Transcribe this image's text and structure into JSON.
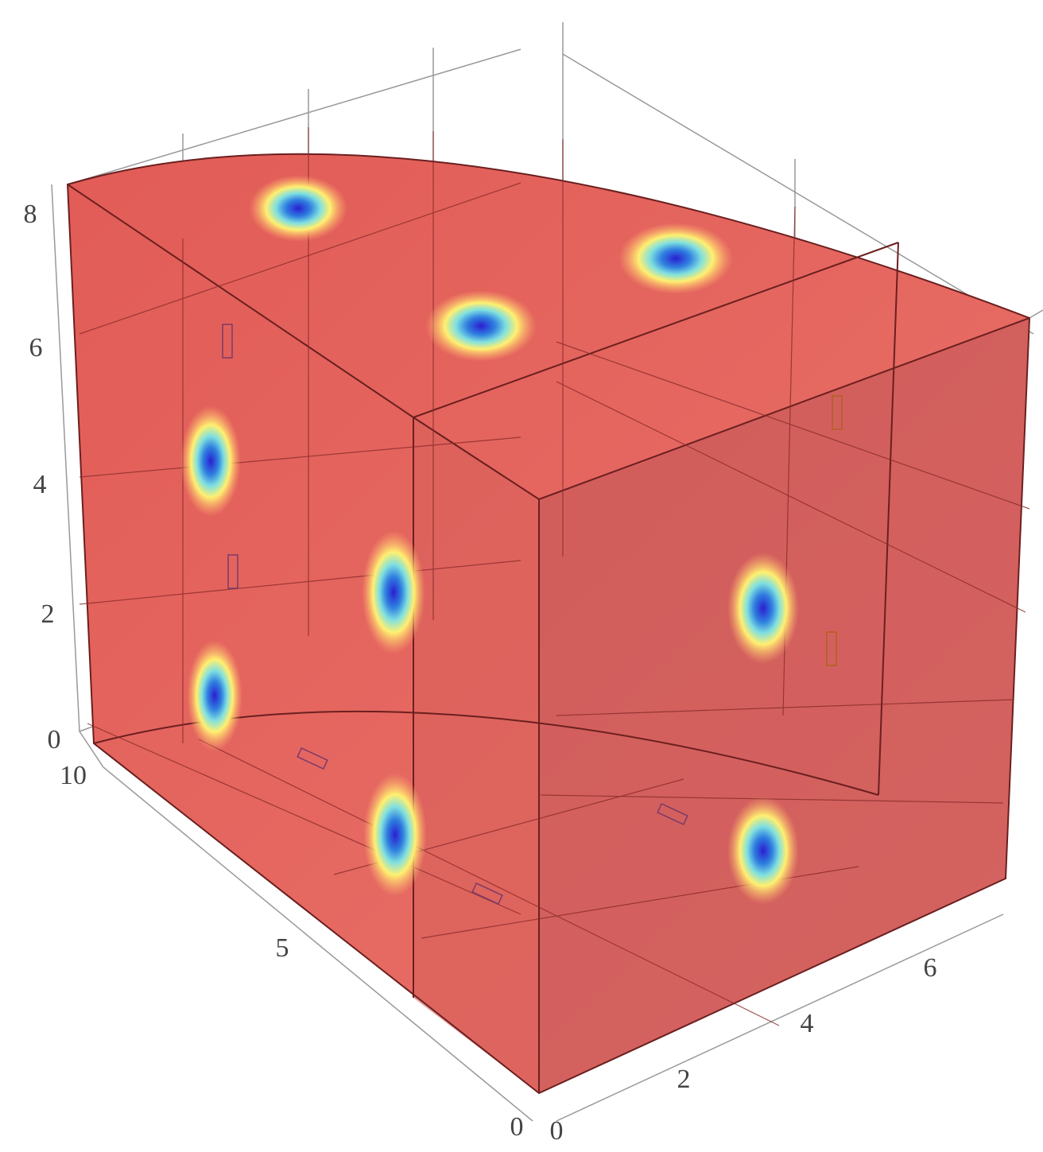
{
  "axes": {
    "z": {
      "ticks": [
        0,
        2,
        4,
        6,
        8
      ]
    },
    "y": {
      "ticks": [
        10,
        5,
        0
      ]
    },
    "x": {
      "ticks": [
        0,
        2,
        4,
        6
      ]
    }
  }
}
